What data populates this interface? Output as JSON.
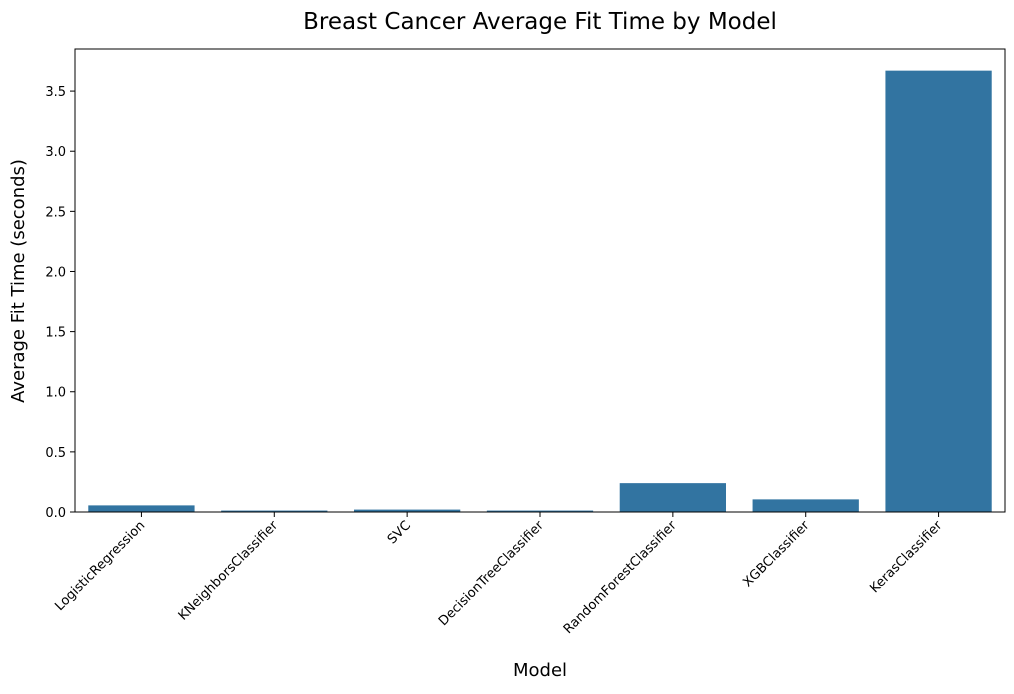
{
  "chart_data": {
    "type": "bar",
    "title": "Breast Cancer Average Fit Time by Model",
    "xlabel": "Model",
    "ylabel": "Average Fit Time (seconds)",
    "categories": [
      "LogisticRegression",
      "KNeighborsClassifier",
      "SVC",
      "DecisionTreeClassifier",
      "RandomForestClassifier",
      "XGBClassifier",
      "KerasClassifier"
    ],
    "values": [
      0.055,
      0.012,
      0.02,
      0.012,
      0.24,
      0.105,
      3.67
    ],
    "ylim": [
      0,
      3.85
    ],
    "yticks": [
      "0.0",
      "0.5",
      "1.0",
      "1.5",
      "2.0",
      "2.5",
      "3.0",
      "3.5"
    ],
    "bar_color": "#3274a1",
    "grid": false,
    "legend": "none"
  }
}
